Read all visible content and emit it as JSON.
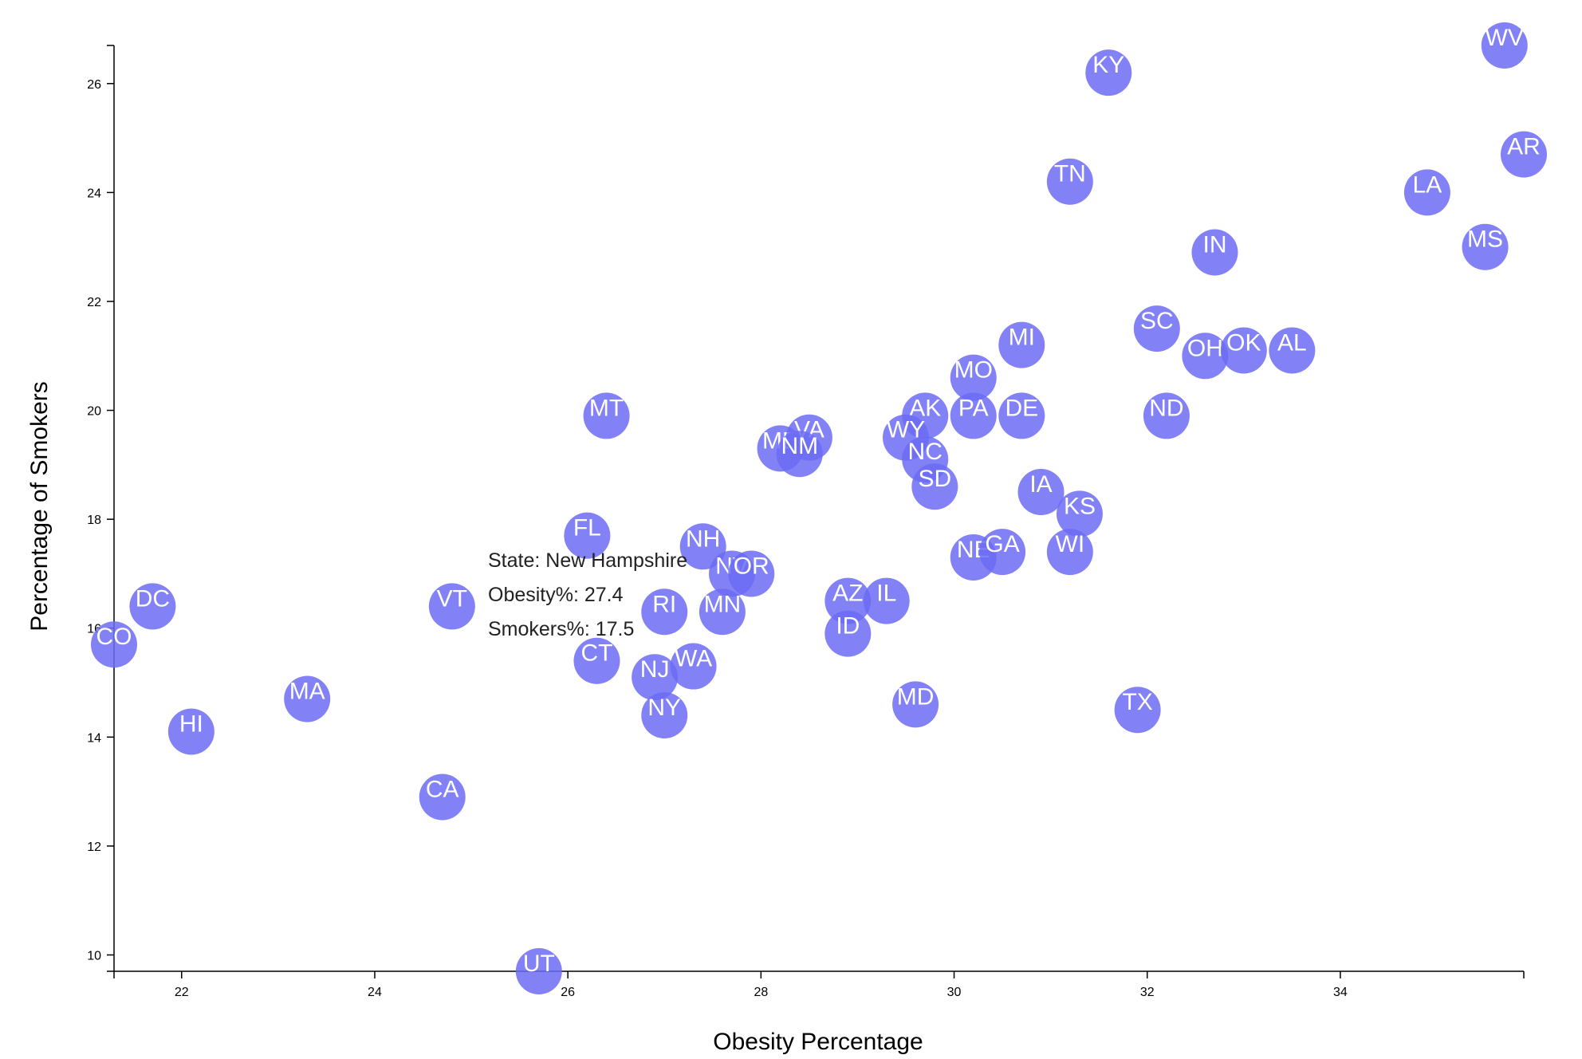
{
  "chart_data": {
    "type": "scatter",
    "xlabel": "Obesity Percentage",
    "ylabel": "Percentage of Smokers",
    "xlim": [
      21.3,
      35.9
    ],
    "ylim": [
      9.7,
      26.7
    ],
    "xticks": [
      22,
      24,
      26,
      28,
      30,
      32,
      34
    ],
    "yticks": [
      10,
      12,
      14,
      16,
      18,
      20,
      22,
      24,
      26
    ],
    "grid": false,
    "marker_color": "#6c6cf5",
    "label_color": "#ffffff",
    "points": [
      {
        "label": "WV",
        "x": 35.7,
        "y": 26.7
      },
      {
        "label": "KY",
        "x": 31.6,
        "y": 26.2
      },
      {
        "label": "AR",
        "x": 35.9,
        "y": 24.7
      },
      {
        "label": "TN",
        "x": 31.2,
        "y": 24.2
      },
      {
        "label": "LA",
        "x": 34.9,
        "y": 24.0
      },
      {
        "label": "MS",
        "x": 35.5,
        "y": 23.0
      },
      {
        "label": "IN",
        "x": 32.7,
        "y": 22.9
      },
      {
        "label": "SC",
        "x": 32.1,
        "y": 21.5
      },
      {
        "label": "MI",
        "x": 30.7,
        "y": 21.2
      },
      {
        "label": "OH",
        "x": 32.6,
        "y": 21.0
      },
      {
        "label": "OK",
        "x": 33.0,
        "y": 21.1
      },
      {
        "label": "AL",
        "x": 33.5,
        "y": 21.1
      },
      {
        "label": "MO",
        "x": 30.2,
        "y": 20.6
      },
      {
        "label": "MT",
        "x": 26.4,
        "y": 19.9
      },
      {
        "label": "AK",
        "x": 29.7,
        "y": 19.9
      },
      {
        "label": "PA",
        "x": 30.2,
        "y": 19.9
      },
      {
        "label": "DE",
        "x": 30.7,
        "y": 19.9
      },
      {
        "label": "ND",
        "x": 32.2,
        "y": 19.9
      },
      {
        "label": "ME",
        "x": 28.2,
        "y": 19.3
      },
      {
        "label": "VA",
        "x": 28.5,
        "y": 19.5
      },
      {
        "label": "NM",
        "x": 28.4,
        "y": 19.2
      },
      {
        "label": "WY",
        "x": 29.5,
        "y": 19.5
      },
      {
        "label": "NC",
        "x": 29.7,
        "y": 19.1
      },
      {
        "label": "SD",
        "x": 29.8,
        "y": 18.6
      },
      {
        "label": "IA",
        "x": 30.9,
        "y": 18.5
      },
      {
        "label": "KS",
        "x": 31.3,
        "y": 18.1
      },
      {
        "label": "FL",
        "x": 26.2,
        "y": 17.7
      },
      {
        "label": "NH",
        "x": 27.4,
        "y": 17.5
      },
      {
        "label": "NV",
        "x": 27.7,
        "y": 17.0
      },
      {
        "label": "OR",
        "x": 27.9,
        "y": 17.0
      },
      {
        "label": "NE",
        "x": 30.2,
        "y": 17.3
      },
      {
        "label": "GA",
        "x": 30.5,
        "y": 17.4
      },
      {
        "label": "WI",
        "x": 31.2,
        "y": 17.4
      },
      {
        "label": "DC",
        "x": 21.7,
        "y": 16.4
      },
      {
        "label": "VT",
        "x": 24.8,
        "y": 16.4
      },
      {
        "label": "RI",
        "x": 27.0,
        "y": 16.3
      },
      {
        "label": "MN",
        "x": 27.6,
        "y": 16.3
      },
      {
        "label": "AZ",
        "x": 28.9,
        "y": 16.5
      },
      {
        "label": "IL",
        "x": 29.3,
        "y": 16.5
      },
      {
        "label": "CO",
        "x": 21.3,
        "y": 15.7
      },
      {
        "label": "ID",
        "x": 28.9,
        "y": 15.9
      },
      {
        "label": "CT",
        "x": 26.3,
        "y": 15.4
      },
      {
        "label": "NJ",
        "x": 26.9,
        "y": 15.1
      },
      {
        "label": "WA",
        "x": 27.3,
        "y": 15.3
      },
      {
        "label": "MA",
        "x": 23.3,
        "y": 14.7
      },
      {
        "label": "MD",
        "x": 29.6,
        "y": 14.6
      },
      {
        "label": "TX",
        "x": 31.9,
        "y": 14.5
      },
      {
        "label": "NY",
        "x": 27.0,
        "y": 14.4
      },
      {
        "label": "HI",
        "x": 22.1,
        "y": 14.1
      },
      {
        "label": "CA",
        "x": 24.7,
        "y": 12.9
      },
      {
        "label": "UT",
        "x": 25.7,
        "y": 9.7
      }
    ]
  },
  "tooltip": {
    "line1": "State: New Hampshire",
    "line2": "Obesity%: 27.4",
    "line3": "Smokers%: 17.5"
  }
}
